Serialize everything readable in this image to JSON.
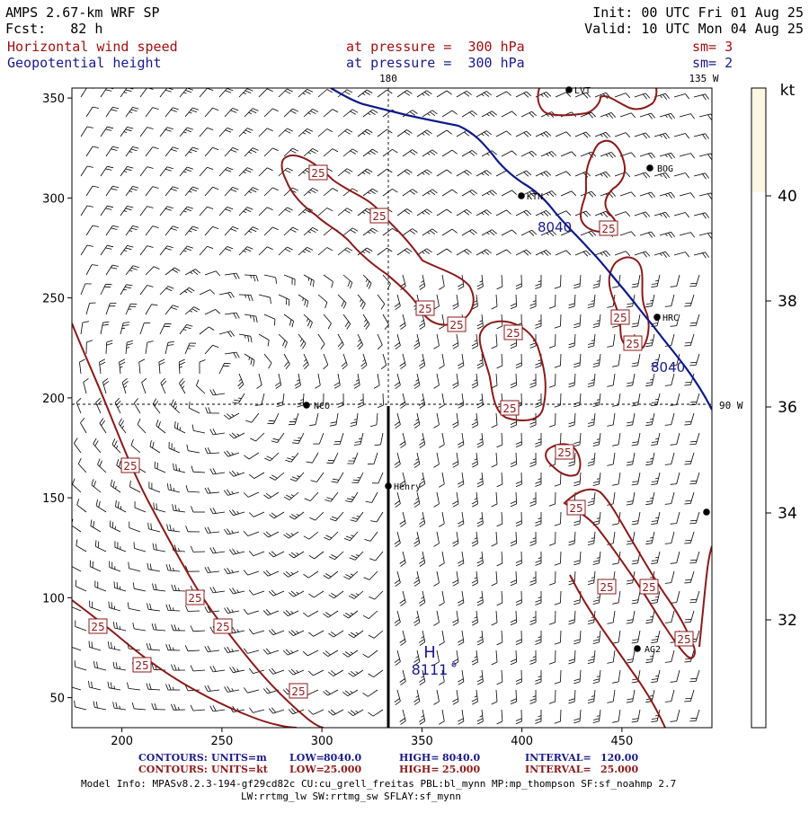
{
  "header": {
    "model_line": "AMPS 2.67-km WRF SP",
    "fcst_line": "Fcst:   82 h",
    "init_line": "Init: 00 UTC Fri 01 Aug 25",
    "valid_line": "Valid: 10 UTC Mon 04 Aug 25",
    "field1_name": "Horizontal wind speed",
    "field1_level": "at pressure =  300 hPa",
    "field1_sm": "sm= 3",
    "field2_name": "Geopotential height",
    "field2_level": "at pressure =  300 hPa",
    "field2_sm": "sm= 2"
  },
  "map": {
    "lon_labels": {
      "top_180": "180",
      "top_135w": "135 W",
      "right_90w": "90 W"
    },
    "x_ticks": [
      "200",
      "250",
      "300",
      "350",
      "400",
      "450"
    ],
    "y_ticks": [
      "50",
      "100",
      "150",
      "200",
      "250",
      "300",
      "350"
    ],
    "stations": [
      {
        "id": "LVT",
        "label": "LVT"
      },
      {
        "id": "BOG",
        "label": "BOG"
      },
      {
        "id": "KTN",
        "label": "KTN"
      },
      {
        "id": "HRC",
        "label": "HRC"
      },
      {
        "id": "NCO",
        "label": "NCO"
      },
      {
        "id": "Henry",
        "label": "Henry"
      },
      {
        "id": "AG2",
        "label": "AG2"
      },
      {
        "id": "edge",
        "label": ""
      }
    ],
    "height_contour_labels": [
      "8040",
      "8040"
    ],
    "wind_contour_label": "25",
    "high_marker": {
      "symbol": "H",
      "value": "8111"
    }
  },
  "colorbar": {
    "unit": "kt",
    "ticks": [
      "40",
      "38",
      "36",
      "34",
      "32"
    ]
  },
  "footer": {
    "line1": {
      "contours": "CONTOURS:",
      "units": "UNITS=m",
      "low": "LOW=",
      "low_val": "8040.0",
      "high": "HIGH=",
      "high_val": "8040.0",
      "interval": "INTERVAL=",
      "interval_val": "120.00"
    },
    "line2": {
      "contours": "CONTOURS:",
      "units": "UNITS=kt",
      "low": "LOW=",
      "low_val": "25.000",
      "high": "HIGH=",
      "high_val": "25.000",
      "interval": "INTERVAL=",
      "interval_val": "25.000"
    },
    "model_info": "Model Info: MPASv8.2.3-194-gf29cd82c CU:cu_grell_freitas PBL:bl_mynn MP:mp_thompson SF:sf_noahmp 2.7",
    "model_info2": "LW:rrtmg_lw SW:rrtmg_sw SFLAY:sf_mynn"
  },
  "colors": {
    "title_text": "#000000",
    "field_wind": "#a01010",
    "field_height": "#1a1a8c",
    "wind_contour": "#8b1a1a",
    "height_contour": "#0c1a8a",
    "colorbar_fill": "#fcf6e2",
    "footer_blue": "#1a1a8c",
    "footer_red": "#8b1a1a"
  }
}
